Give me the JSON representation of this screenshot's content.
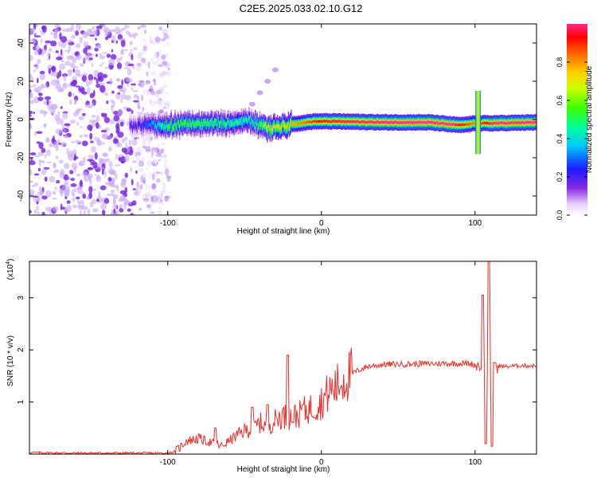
{
  "title": "C2E5.2025.033.02.10.G12",
  "chart_data": [
    {
      "type": "heatmap",
      "xlabel": "Height of straight line (km)",
      "ylabel": "Frequency (Hz)",
      "xlim": [
        -190,
        140
      ],
      "ylim": [
        -50,
        50
      ],
      "xticks": [
        -100,
        0,
        100
      ],
      "yticks": [
        -40,
        -20,
        0,
        20,
        40
      ],
      "colorbar": {
        "label": "Normalized spectral amplitude",
        "range": [
          0,
          1
        ],
        "ticks": [
          0.0,
          0.2,
          0.4,
          0.6,
          0.8
        ]
      },
      "noise_region_x": [
        -190,
        -105
      ],
      "band": {
        "center_hz": [
          [
            -120,
            -3
          ],
          [
            -100,
            -3
          ],
          [
            -80,
            -2
          ],
          [
            -60,
            -2
          ],
          [
            -45,
            -1
          ],
          [
            -35,
            -5
          ],
          [
            -25,
            -3
          ],
          [
            -15,
            -2
          ],
          [
            -5,
            -1
          ],
          [
            10,
            -1
          ],
          [
            40,
            -1.5
          ],
          [
            70,
            -1.5
          ],
          [
            90,
            -3
          ],
          [
            100,
            -2
          ],
          [
            110,
            -2
          ],
          [
            140,
            -1.5
          ]
        ],
        "peak_amplitude": [
          [
            -120,
            0.2
          ],
          [
            -110,
            0.35
          ],
          [
            -100,
            0.55
          ],
          [
            -80,
            0.55
          ],
          [
            -60,
            0.5
          ],
          [
            -45,
            0.45
          ],
          [
            -35,
            0.7
          ],
          [
            -20,
            0.75
          ],
          [
            -10,
            0.85
          ],
          [
            0,
            0.95
          ],
          [
            20,
            0.98
          ],
          [
            60,
            1.0
          ],
          [
            85,
            1.0
          ],
          [
            100,
            0.8
          ],
          [
            110,
            1.0
          ],
          [
            140,
            1.0
          ]
        ]
      },
      "arc_feature": [
        [
          -45,
          8
        ],
        [
          -40,
          14
        ],
        [
          -35,
          20
        ],
        [
          -30,
          26
        ]
      ],
      "spike_feature": {
        "x": 102,
        "f_range": [
          -18,
          15
        ]
      }
    },
    {
      "type": "line",
      "xlabel": "Height of straight line (km)",
      "ylabel": "SNR (10 * v/v)",
      "y_multiplier_label": "(x10",
      "y_multiplier_exp": "4",
      "xlim": [
        -190,
        140
      ],
      "ylim": [
        0,
        3.7
      ],
      "xticks": [
        -100,
        0,
        100
      ],
      "yticks": [
        1,
        2,
        3
      ],
      "color": "#e8302c",
      "series": [
        {
          "values": [
            [
              -190,
              0.03
            ],
            [
              -160,
              0.02
            ],
            [
              -120,
              0.02
            ],
            [
              -100,
              0.02
            ],
            [
              -95,
              0.05
            ],
            [
              -88,
              0.25
            ],
            [
              -80,
              0.3
            ],
            [
              -70,
              0.2
            ],
            [
              -65,
              0.15
            ],
            [
              -58,
              0.3
            ],
            [
              -50,
              0.45
            ],
            [
              -44,
              0.5
            ],
            [
              -40,
              0.6
            ],
            [
              -35,
              0.55
            ],
            [
              -30,
              0.65
            ],
            [
              -25,
              0.75
            ],
            [
              -22,
              0.7
            ],
            [
              -15,
              0.75
            ],
            [
              -10,
              0.85
            ],
            [
              -5,
              0.9
            ],
            [
              0,
              1.0
            ],
            [
              5,
              1.2
            ],
            [
              10,
              1.3
            ],
            [
              15,
              1.45
            ],
            [
              20,
              1.55
            ],
            [
              25,
              1.62
            ],
            [
              30,
              1.68
            ],
            [
              40,
              1.72
            ],
            [
              60,
              1.73
            ],
            [
              80,
              1.74
            ],
            [
              95,
              1.74
            ],
            [
              100,
              1.72
            ],
            [
              104,
              1.7
            ],
            [
              110,
              1.7
            ],
            [
              120,
              1.68
            ],
            [
              130,
              1.7
            ],
            [
              140,
              1.69
            ]
          ]
        }
      ],
      "spikes": [
        [
          -69,
          0.5
        ],
        [
          -45,
          0.9
        ],
        [
          -35,
          0.95
        ],
        [
          -22,
          1.9
        ],
        [
          -12,
          0.95
        ],
        [
          105,
          3.05
        ],
        [
          107,
          0.2
        ],
        [
          109,
          3.7
        ],
        [
          111,
          0.15
        ],
        [
          113,
          1.75
        ]
      ]
    }
  ]
}
